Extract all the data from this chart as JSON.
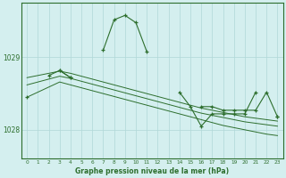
{
  "title": "Graphe pression niveau de la mer (hPa)",
  "bg_color": "#d4efef",
  "grid_color": "#b0d8d8",
  "line_color": "#2d6e2d",
  "x_ticks": [
    0,
    1,
    2,
    3,
    4,
    5,
    6,
    7,
    8,
    9,
    10,
    11,
    12,
    13,
    14,
    15,
    16,
    17,
    18,
    19,
    20,
    21,
    22,
    23
  ],
  "x_labels": [
    "0",
    "1",
    "2",
    "3",
    "4",
    "5",
    "6",
    "7",
    "8",
    "9",
    "10",
    "11",
    "12",
    "13",
    "14",
    "15",
    "16",
    "17",
    "18",
    "19",
    "20",
    "21",
    "22",
    "23"
  ],
  "y_ticks": [
    1028,
    1029
  ],
  "ylim": [
    1027.6,
    1029.75
  ],
  "series_main": [
    1028.45,
    null,
    1028.75,
    1028.82,
    1028.72,
    null,
    null,
    1029.1,
    1029.52,
    1029.58,
    1029.48,
    1029.08,
    null,
    null,
    1028.52,
    1028.32,
    1028.05,
    1028.22,
    1028.22,
    1028.22,
    1028.22,
    1028.52,
    null,
    1028.18
  ],
  "series_flat1": [
    1028.45,
    1028.52,
    1028.59,
    1028.66,
    1028.62,
    1028.58,
    1028.54,
    1028.5,
    1028.46,
    1028.42,
    1028.38,
    1028.34,
    1028.3,
    1028.26,
    1028.22,
    1028.18,
    1028.14,
    1028.1,
    1028.06,
    1028.03,
    1028.0,
    1027.97,
    1027.94,
    1027.92
  ],
  "series_flat2": [
    1028.62,
    1028.66,
    1028.7,
    1028.74,
    1028.71,
    1028.67,
    1028.63,
    1028.59,
    1028.55,
    1028.51,
    1028.47,
    1028.43,
    1028.39,
    1028.35,
    1028.31,
    1028.27,
    1028.23,
    1028.2,
    1028.17,
    1028.14,
    1028.11,
    1028.09,
    1028.07,
    1028.05
  ],
  "series_flat3": [
    1028.72,
    1028.75,
    1028.78,
    1028.81,
    1028.78,
    1028.74,
    1028.7,
    1028.66,
    1028.62,
    1028.58,
    1028.54,
    1028.5,
    1028.46,
    1028.42,
    1028.38,
    1028.34,
    1028.3,
    1028.27,
    1028.24,
    1028.21,
    1028.18,
    1028.16,
    1028.14,
    1028.12
  ],
  "series_second": [
    null,
    null,
    null,
    1028.82,
    1028.72,
    null,
    null,
    null,
    null,
    null,
    null,
    null,
    null,
    null,
    null,
    null,
    1028.32,
    1028.32,
    1028.27,
    1028.27,
    1028.27,
    1028.27,
    1028.52,
    1028.18
  ]
}
